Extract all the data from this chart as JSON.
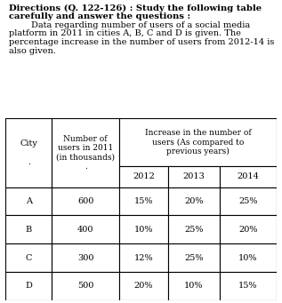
{
  "title_line1": "Directions (Q. 122-126) : Study the following table",
  "title_line2": "carefully and answer the questions :",
  "para_lines": [
    "        Data regarding number of users of a social media",
    "platform in 2011 in cities A, B, C and D is given. The",
    "percentage increase in the number of users from 2012-14 is",
    "also given."
  ],
  "sub_headers": [
    "2012",
    "2013",
    "2014"
  ],
  "rows": [
    [
      "A",
      "600",
      "15%",
      "20%",
      "25%"
    ],
    [
      "B",
      "400",
      "10%",
      "25%",
      "20%"
    ],
    [
      "C",
      "300",
      "12%",
      "25%",
      "10%"
    ],
    [
      "D",
      "500",
      "20%",
      "10%",
      "15%"
    ]
  ],
  "bg_color": "#ffffff",
  "text_color": "#000000",
  "font_size_title": 7.2,
  "font_size_para": 7.0,
  "font_size_table": 7.0
}
